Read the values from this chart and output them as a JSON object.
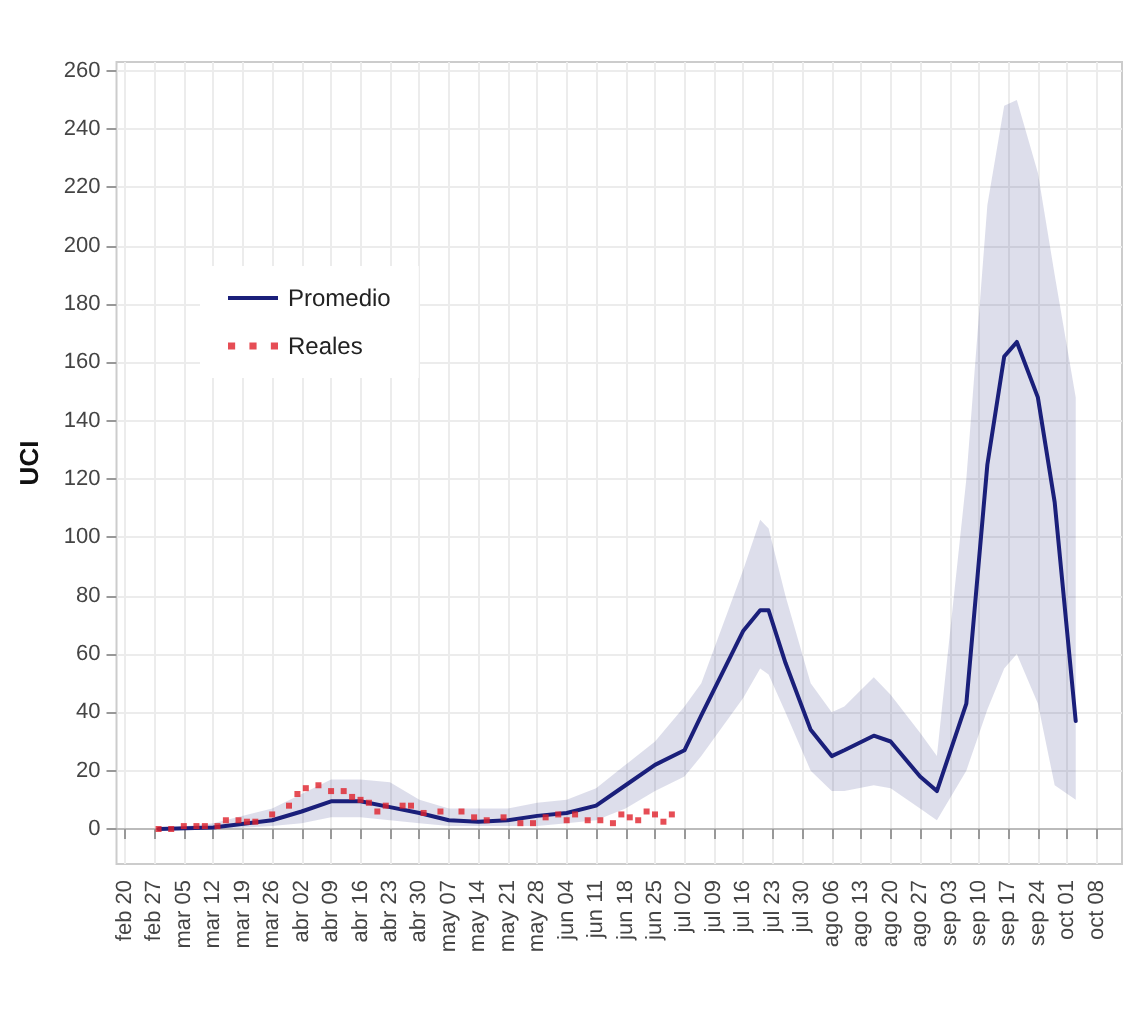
{
  "chart_data": {
    "type": "line",
    "ylabel": "UCI",
    "xlim": [
      "--02-18",
      "--10-14"
    ],
    "ylim": [
      -12,
      263
    ],
    "yticks": [
      0,
      20,
      40,
      60,
      80,
      100,
      120,
      140,
      160,
      180,
      200,
      220,
      240,
      260
    ],
    "xticks": [
      {
        "value": "--02-20",
        "label": "feb 20"
      },
      {
        "value": "--02-27",
        "label": "feb 27"
      },
      {
        "value": "--03-05",
        "label": "mar 05"
      },
      {
        "value": "--03-12",
        "label": "mar 12"
      },
      {
        "value": "--03-19",
        "label": "mar 19"
      },
      {
        "value": "--03-26",
        "label": "mar 26"
      },
      {
        "value": "--04-02",
        "label": "abr 02"
      },
      {
        "value": "--04-09",
        "label": "abr 09"
      },
      {
        "value": "--04-16",
        "label": "abr 16"
      },
      {
        "value": "--04-23",
        "label": "abr 23"
      },
      {
        "value": "--04-30",
        "label": "abr 30"
      },
      {
        "value": "--05-07",
        "label": "may 07"
      },
      {
        "value": "--05-14",
        "label": "may 14"
      },
      {
        "value": "--05-21",
        "label": "may 21"
      },
      {
        "value": "--05-28",
        "label": "may 28"
      },
      {
        "value": "--06-04",
        "label": "jun 04"
      },
      {
        "value": "--06-11",
        "label": "jun 11"
      },
      {
        "value": "--06-18",
        "label": "jun 18"
      },
      {
        "value": "--06-25",
        "label": "jun 25"
      },
      {
        "value": "--07-02",
        "label": "jul 02"
      },
      {
        "value": "--07-09",
        "label": "jul 09"
      },
      {
        "value": "--07-16",
        "label": "jul 16"
      },
      {
        "value": "--07-23",
        "label": "jul 23"
      },
      {
        "value": "--07-30",
        "label": "jul 30"
      },
      {
        "value": "--08-06",
        "label": "ago 06"
      },
      {
        "value": "--08-13",
        "label": "ago 13"
      },
      {
        "value": "--08-20",
        "label": "ago 20"
      },
      {
        "value": "--08-27",
        "label": "ago 27"
      },
      {
        "value": "--09-03",
        "label": "sep 03"
      },
      {
        "value": "--09-10",
        "label": "sep 10"
      },
      {
        "value": "--09-17",
        "label": "sep 17"
      },
      {
        "value": "--09-24",
        "label": "sep 24"
      },
      {
        "value": "--10-01",
        "label": "oct 01"
      },
      {
        "value": "--10-08",
        "label": "oct 08"
      }
    ],
    "grid": true,
    "legend": "top left",
    "line_style": "solid",
    "series": [
      {
        "name": "Promedio",
        "color": "#1a1f7a",
        "x": [
          "--02-28",
          "--03-12",
          "--03-26",
          "--04-02",
          "--04-09",
          "--04-16",
          "--04-23",
          "--04-30",
          "--05-07",
          "--05-14",
          "--05-21",
          "--05-28",
          "--06-04",
          "--06-11",
          "--06-18",
          "--06-25",
          "--07-02",
          "--07-06",
          "--07-16",
          "--07-20",
          "--07-22",
          "--07-26",
          "--08-01",
          "--08-06",
          "--08-09",
          "--08-16",
          "--08-20",
          "--08-27",
          "--08-31",
          "--09-07",
          "--09-12",
          "--09-16",
          "--09-19",
          "--09-24",
          "--09-28",
          "--10-03"
        ],
        "values": [
          0,
          0.5,
          3,
          6,
          9.5,
          9.5,
          7.5,
          5.5,
          3,
          2.5,
          3,
          4.5,
          5.5,
          8,
          15,
          22,
          27,
          39,
          68,
          75,
          75,
          57,
          34,
          25,
          27,
          32,
          30,
          18,
          13,
          43,
          125,
          162,
          167,
          148,
          112,
          37
        ],
        "lower": [
          0,
          0,
          1,
          2,
          4,
          4,
          3,
          2,
          1,
          1,
          1,
          1,
          2,
          3,
          7,
          13,
          18,
          25,
          45,
          55,
          53,
          40,
          20,
          13,
          13,
          15,
          14,
          7,
          3,
          20,
          41,
          55,
          60,
          43,
          15,
          10
        ],
        "upper": [
          0,
          2,
          7,
          12,
          17,
          17,
          16,
          10,
          7,
          7,
          7,
          9,
          10,
          14,
          22,
          30,
          42,
          50,
          89,
          106,
          103,
          80,
          50,
          40,
          42,
          52,
          46,
          33,
          25,
          120,
          214,
          248,
          250,
          225,
          190,
          148
        ]
      },
      {
        "name": "Reales",
        "type": "scatter",
        "marker": "square",
        "color": "#e0202a",
        "x": [
          "--02-28",
          "--03-02",
          "--03-05",
          "--03-08",
          "--03-10",
          "--03-13",
          "--03-15",
          "--03-18",
          "--03-20",
          "--03-22",
          "--03-26",
          "--03-30",
          "--04-01",
          "--04-03",
          "--04-06",
          "--04-09",
          "--04-12",
          "--04-14",
          "--04-16",
          "--04-18",
          "--04-20",
          "--04-22",
          "--04-26",
          "--04-28",
          "--05-01",
          "--05-05",
          "--05-10",
          "--05-13",
          "--05-16",
          "--05-20",
          "--05-24",
          "--05-27",
          "--05-30",
          "--06-02",
          "--06-04",
          "--06-06",
          "--06-09",
          "--06-12",
          "--06-15",
          "--06-17",
          "--06-19",
          "--06-21",
          "--06-23",
          "--06-25",
          "--06-27",
          "--06-29"
        ],
        "values": [
          0,
          0,
          1,
          1,
          1,
          1,
          3,
          3,
          2.5,
          2.5,
          5,
          8,
          12,
          14,
          15,
          13,
          13,
          11,
          10,
          9,
          6,
          8,
          8,
          8,
          5.5,
          6,
          6,
          4,
          3,
          4,
          2,
          2,
          4,
          5,
          3,
          5,
          3,
          3,
          2,
          5,
          4,
          3,
          6,
          5,
          2.5,
          5
        ]
      }
    ]
  }
}
